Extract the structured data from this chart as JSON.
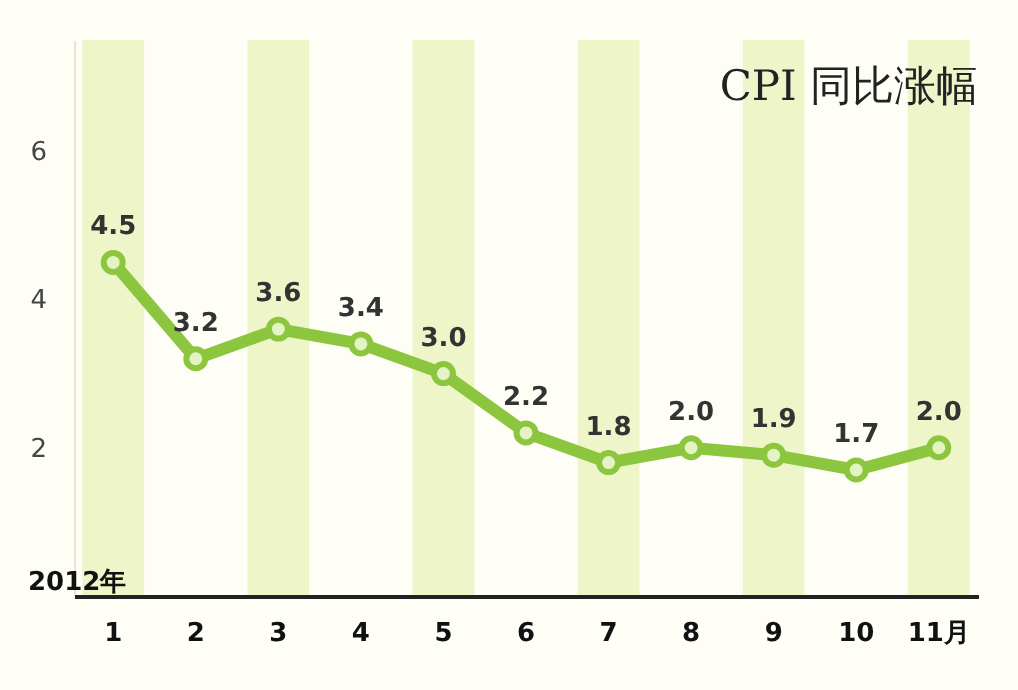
{
  "chart_data": {
    "type": "line",
    "title": "CPI 同比涨幅",
    "categories": [
      "1",
      "2",
      "3",
      "4",
      "5",
      "6",
      "7",
      "8",
      "9",
      "10",
      "11月"
    ],
    "values": [
      4.5,
      3.2,
      3.6,
      3.4,
      3.0,
      2.2,
      1.8,
      2.0,
      1.9,
      1.7,
      2.0
    ],
    "color": "#8cc63f",
    "marker": "circle",
    "value_labels": [
      "4.5",
      "3.2",
      "3.6",
      "3.4",
      "3.0",
      "2.2",
      "1.8",
      "2.0",
      "1.9",
      "1.7",
      "2.0"
    ],
    "ylim": [
      0,
      7.5
    ],
    "yticks": [
      2,
      4,
      6
    ],
    "grid": false,
    "bands": [
      {
        "axis": "x",
        "from": "1",
        "to": "1",
        "color": "#eef5c8"
      },
      {
        "axis": "x",
        "from": "3",
        "to": "3",
        "color": "#eef5c8"
      },
      {
        "axis": "x",
        "from": "5",
        "to": "5",
        "color": "#eef5c8"
      },
      {
        "axis": "x",
        "from": "7",
        "to": "7",
        "color": "#eef5c8"
      },
      {
        "axis": "x",
        "from": "9",
        "to": "9",
        "color": "#eef5c8"
      },
      {
        "axis": "x",
        "from": "11月",
        "to": "11月",
        "color": "#eef5c8"
      }
    ],
    "annotations": [
      "2012年"
    ]
  }
}
